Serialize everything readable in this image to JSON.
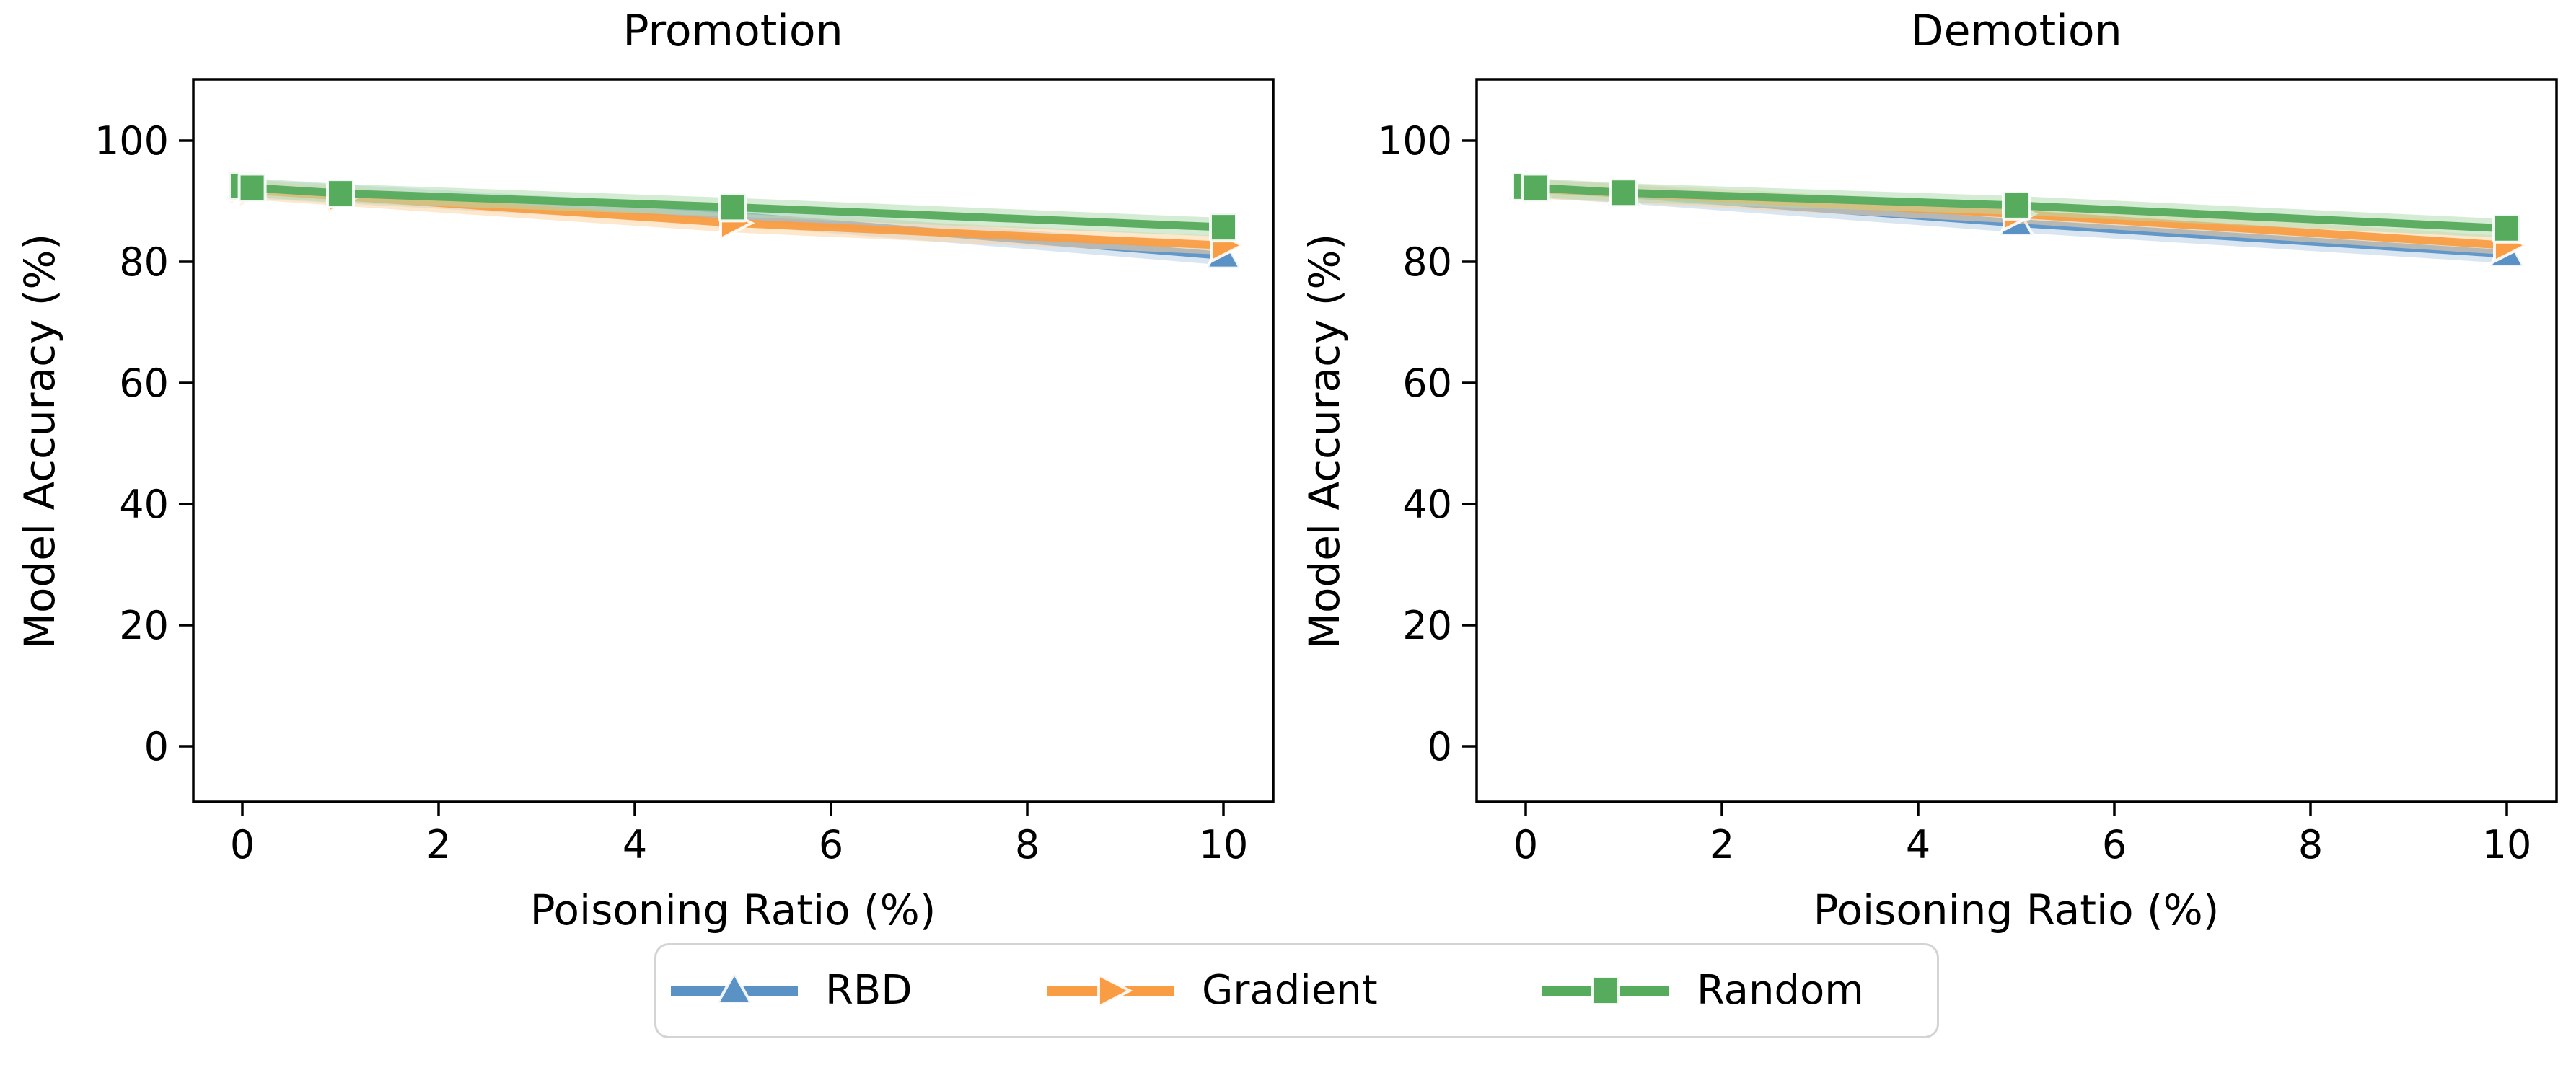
{
  "figure": {
    "xlabel": "Poisoning Ratio (%)",
    "ylabel": "Model Accuracy (%)"
  },
  "legend": {
    "entries": [
      {
        "label": "RBD",
        "marker": "triangle-up",
        "color": "#5b92c6",
        "halo": "#b9d2e8",
        "edge": "rgba(255,255,255,0.9)"
      },
      {
        "label": "Gradient",
        "marker": "triangle-right",
        "color": "#f99d45",
        "halo": "#fcd4a4",
        "edge": "rgba(255,255,255,0.9)"
      },
      {
        "label": "Random",
        "marker": "square",
        "color": "#56ab5d",
        "halo": "#b2dcb0",
        "edge": "rgba(255,255,255,0.9)"
      }
    ]
  },
  "chart_data": [
    {
      "type": "line",
      "title": "Promotion",
      "xlabel": "Poisoning Ratio (%)",
      "ylabel": "Model Accuracy (%)",
      "x": [
        0,
        0.1,
        1,
        5,
        10
      ],
      "xticks": [
        0,
        2,
        4,
        6,
        8,
        10
      ],
      "yticks": [
        0,
        20,
        40,
        60,
        80,
        100
      ],
      "xlim": [
        -0.5,
        10.5
      ],
      "ylim": [
        -9,
        110
      ],
      "grid": false,
      "series": [
        {
          "name": "RBD",
          "values": [
            92.3,
            92.0,
            91.2,
            87.6,
            81.0
          ]
        },
        {
          "name": "Gradient",
          "values": [
            92.2,
            91.8,
            90.8,
            86.4,
            82.7
          ]
        },
        {
          "name": "Random",
          "values": [
            92.5,
            92.2,
            91.3,
            89.0,
            85.7
          ]
        }
      ]
    },
    {
      "type": "line",
      "title": "Demotion",
      "xlabel": "Poisoning Ratio (%)",
      "ylabel": "Model Accuracy (%)",
      "x": [
        0,
        0.1,
        1,
        5,
        10
      ],
      "xticks": [
        0,
        2,
        4,
        6,
        8,
        10
      ],
      "yticks": [
        0,
        20,
        40,
        60,
        80,
        100
      ],
      "xlim": [
        -0.5,
        10.5
      ],
      "ylim": [
        -9,
        110
      ],
      "grid": false,
      "series": [
        {
          "name": "RBD",
          "values": [
            92.3,
            92.1,
            91.2,
            86.4,
            81.3
          ]
        },
        {
          "name": "Gradient",
          "values": [
            92.3,
            92.0,
            91.3,
            87.9,
            82.7
          ]
        },
        {
          "name": "Random",
          "values": [
            92.4,
            92.2,
            91.4,
            89.3,
            85.5
          ]
        }
      ]
    }
  ]
}
